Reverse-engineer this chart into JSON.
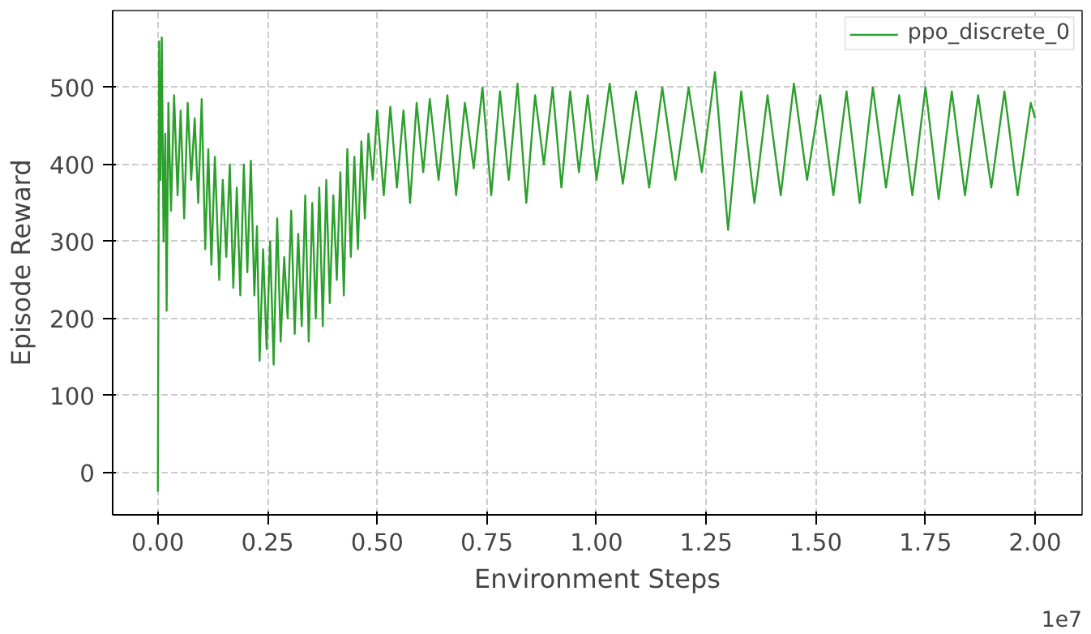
{
  "chart_data": {
    "type": "line",
    "xlabel": "Environment Steps",
    "ylabel": "Episode Reward",
    "annotations": [
      "1e7"
    ],
    "xlim": [
      -0.103,
      2.107
    ],
    "ylim": [
      -55,
      600
    ],
    "xticks": [
      {
        "value": 0,
        "label": "0.00"
      },
      {
        "value": 0.25,
        "label": "0.25"
      },
      {
        "value": 0.5,
        "label": "0.50"
      },
      {
        "value": 0.75,
        "label": "0.75"
      },
      {
        "value": 1,
        "label": "1.00"
      },
      {
        "value": 1.25,
        "label": "1.25"
      },
      {
        "value": 1.5,
        "label": "1.50"
      },
      {
        "value": 1.75,
        "label": "1.75"
      },
      {
        "value": 2,
        "label": "2.00"
      }
    ],
    "yticks": [
      0,
      100,
      200,
      300,
      400,
      500
    ],
    "grid": true,
    "legend": "top right",
    "line_style": "solid",
    "series": [
      {
        "name": "ppo_discrete_0",
        "color": "#2ca02c",
        "x": [
          0,
          0.003,
          0.006,
          0.009,
          0.013,
          0.017,
          0.02,
          0.024,
          0.03,
          0.037,
          0.045,
          0.052,
          0.06,
          0.068,
          0.076,
          0.084,
          0.092,
          0.1,
          0.108,
          0.115,
          0.122,
          0.13,
          0.14,
          0.148,
          0.156,
          0.164,
          0.172,
          0.18,
          0.188,
          0.196,
          0.204,
          0.212,
          0.22,
          0.226,
          0.232,
          0.24,
          0.248,
          0.256,
          0.264,
          0.272,
          0.28,
          0.288,
          0.296,
          0.304,
          0.312,
          0.32,
          0.328,
          0.336,
          0.344,
          0.352,
          0.36,
          0.368,
          0.376,
          0.384,
          0.392,
          0.4,
          0.408,
          0.416,
          0.424,
          0.432,
          0.44,
          0.448,
          0.456,
          0.464,
          0.472,
          0.48,
          0.49,
          0.5,
          0.515,
          0.53,
          0.545,
          0.56,
          0.575,
          0.59,
          0.605,
          0.62,
          0.64,
          0.66,
          0.68,
          0.7,
          0.72,
          0.74,
          0.76,
          0.78,
          0.8,
          0.82,
          0.84,
          0.86,
          0.88,
          0.9,
          0.92,
          0.94,
          0.96,
          0.98,
          1.0,
          1.03,
          1.06,
          1.09,
          1.12,
          1.15,
          1.18,
          1.21,
          1.24,
          1.27,
          1.3,
          1.33,
          1.36,
          1.39,
          1.42,
          1.45,
          1.48,
          1.51,
          1.54,
          1.57,
          1.6,
          1.63,
          1.66,
          1.69,
          1.72,
          1.75,
          1.78,
          1.81,
          1.84,
          1.87,
          1.9,
          1.93,
          1.96,
          1.99,
          2.0
        ],
        "values": [
          -25,
          560,
          380,
          565,
          300,
          440,
          210,
          480,
          340,
          490,
          360,
          470,
          330,
          480,
          380,
          460,
          350,
          485,
          290,
          420,
          270,
          410,
          250,
          380,
          280,
          400,
          240,
          370,
          230,
          400,
          260,
          405,
          230,
          320,
          145,
          290,
          160,
          300,
          140,
          330,
          170,
          280,
          200,
          340,
          180,
          310,
          190,
          360,
          170,
          350,
          200,
          370,
          190,
          380,
          220,
          360,
          250,
          390,
          230,
          420,
          280,
          410,
          290,
          430,
          330,
          440,
          380,
          470,
          360,
          475,
          370,
          470,
          350,
          480,
          390,
          485,
          380,
          490,
          360,
          480,
          395,
          500,
          360,
          495,
          380,
          505,
          350,
          490,
          400,
          500,
          370,
          495,
          390,
          490,
          380,
          505,
          375,
          495,
          370,
          500,
          380,
          500,
          390,
          520,
          315,
          495,
          350,
          490,
          360,
          505,
          380,
          490,
          360,
          495,
          350,
          500,
          370,
          490,
          360,
          500,
          355,
          495,
          360,
          490,
          370,
          495,
          360,
          480,
          460
        ]
      }
    ]
  }
}
